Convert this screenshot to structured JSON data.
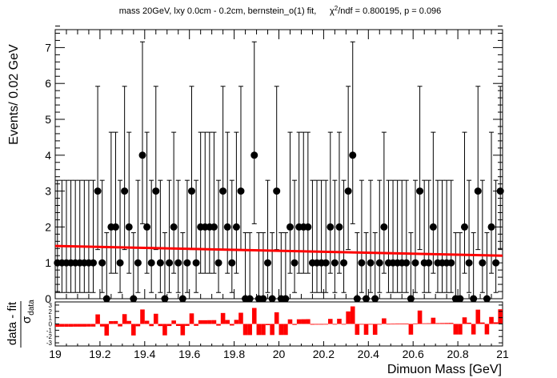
{
  "title": "mass 20GeV, lxy 0.0cm - 0.2cm, bernstein_o(1) fit,",
  "chi2_prefix": "χ",
  "chi2_sup": "2",
  "chi2_suffix": "/ndf = 0.800195, p = 0.096",
  "chart_data": [
    {
      "type": "scatter",
      "panel": "main",
      "ylabel": "Events/ 0.02 GeV",
      "xlim": [
        19,
        21
      ],
      "ylim": [
        0,
        7.5
      ],
      "x_ticks": [
        19,
        19.2,
        19.4,
        19.6,
        19.8,
        20,
        20.2,
        20.4,
        20.6,
        20.8,
        21
      ],
      "y_ticks": [
        0,
        1,
        2,
        3,
        4,
        5,
        6,
        7
      ],
      "series": [
        {
          "x": [
            19.01,
            19.03,
            19.05,
            19.07,
            19.09,
            19.11,
            19.13,
            19.15,
            19.17,
            19.19,
            19.21,
            19.23,
            19.25,
            19.27,
            19.29,
            19.31,
            19.33,
            19.35,
            19.37,
            19.39,
            19.41,
            19.43,
            19.45,
            19.47,
            19.49,
            19.51,
            19.53,
            19.55,
            19.57,
            19.59,
            19.61,
            19.63,
            19.65,
            19.67,
            19.69,
            19.71,
            19.73,
            19.75,
            19.77,
            19.79,
            19.81,
            19.83,
            19.85,
            19.87,
            19.89,
            19.91,
            19.93,
            19.95,
            19.97,
            19.99,
            20.01,
            20.03,
            20.05,
            20.07,
            20.09,
            20.11,
            20.13,
            20.15,
            20.17,
            20.19,
            20.21,
            20.23,
            20.25,
            20.27,
            20.29,
            20.31,
            20.33,
            20.35,
            20.37,
            20.39,
            20.41,
            20.43,
            20.45,
            20.47,
            20.49,
            20.51,
            20.53,
            20.55,
            20.57,
            20.59,
            20.61,
            20.63,
            20.65,
            20.67,
            20.69,
            20.71,
            20.73,
            20.75,
            20.77,
            20.79,
            20.81,
            20.83,
            20.85,
            20.87,
            20.89,
            20.91,
            20.93,
            20.95,
            20.97,
            20.99
          ],
          "y": [
            1,
            1,
            1,
            1,
            1,
            1,
            1,
            1,
            1,
            3,
            1,
            0,
            2,
            2,
            1,
            3,
            2,
            0,
            1,
            4,
            2,
            1,
            3,
            1,
            0,
            1,
            2,
            1,
            0,
            1,
            3,
            1,
            2,
            2,
            2,
            2,
            1,
            3,
            2,
            1,
            2,
            3,
            0,
            0,
            4,
            0,
            0,
            1,
            0,
            3,
            0,
            0,
            2,
            1,
            2,
            2,
            2,
            1,
            1,
            1,
            1,
            2,
            1,
            2,
            1,
            3,
            4,
            0,
            1,
            0,
            1,
            0,
            1,
            2,
            1,
            1,
            1,
            1,
            1,
            0,
            1,
            3,
            1,
            1,
            2,
            1,
            1,
            1,
            1,
            0,
            0,
            2,
            1,
            0,
            3,
            1,
            0,
            2,
            1,
            3
          ]
        },
        {
          "name": "fit",
          "x": [
            19,
            21
          ],
          "y": [
            1.47,
            1.2
          ]
        }
      ]
    },
    {
      "type": "bar",
      "panel": "pull",
      "ylabel_num": "data - fit",
      "ylabel_den": "σ",
      "ylabel_den_sub": "data",
      "xlabel": "Dimuon Mass [GeV]",
      "ylim": [
        -3.5,
        3.5
      ],
      "y_ticks": [
        "-3",
        "-2",
        "-1",
        "0",
        "1",
        "2",
        "3"
      ],
      "values": [
        -0.45,
        -0.44,
        -0.44,
        -0.44,
        -0.43,
        -0.43,
        -0.43,
        -0.42,
        -0.42,
        1.52,
        -0.41,
        -1.85,
        0.45,
        0.46,
        -0.39,
        1.56,
        0.48,
        -1.83,
        -0.37,
        2.3,
        0.51,
        -0.35,
        1.62,
        -0.34,
        -1.81,
        -0.33,
        0.55,
        -0.32,
        -1.8,
        -0.31,
        1.68,
        -0.3,
        0.59,
        0.59,
        0.6,
        0.61,
        -0.27,
        1.74,
        0.63,
        -0.25,
        0.65,
        1.78,
        -1.77,
        -1.77,
        2.54,
        -1.76,
        -1.76,
        -0.19,
        -1.76,
        1.85,
        -1.75,
        -1.75,
        0.73,
        -0.15,
        0.74,
        0.75,
        0.76,
        -0.12,
        -0.11,
        -0.11,
        -0.1,
        0.8,
        -0.08,
        0.82,
        -0.07,
        1.99,
        2.79,
        -1.73,
        -0.03,
        -1.72,
        -0.01,
        -1.72,
        0.0,
        0.89,
        0.02,
        0.03,
        0.04,
        0.05,
        0.06,
        -1.7,
        0.08,
        2.13,
        0.1,
        0.11,
        0.99,
        0.13,
        0.14,
        0.15,
        0.16,
        -1.68,
        -1.68,
        1.05,
        0.2,
        -1.67,
        2.27,
        0.23,
        -1.66,
        1.11,
        0.26,
        2.33
      ]
    }
  ]
}
